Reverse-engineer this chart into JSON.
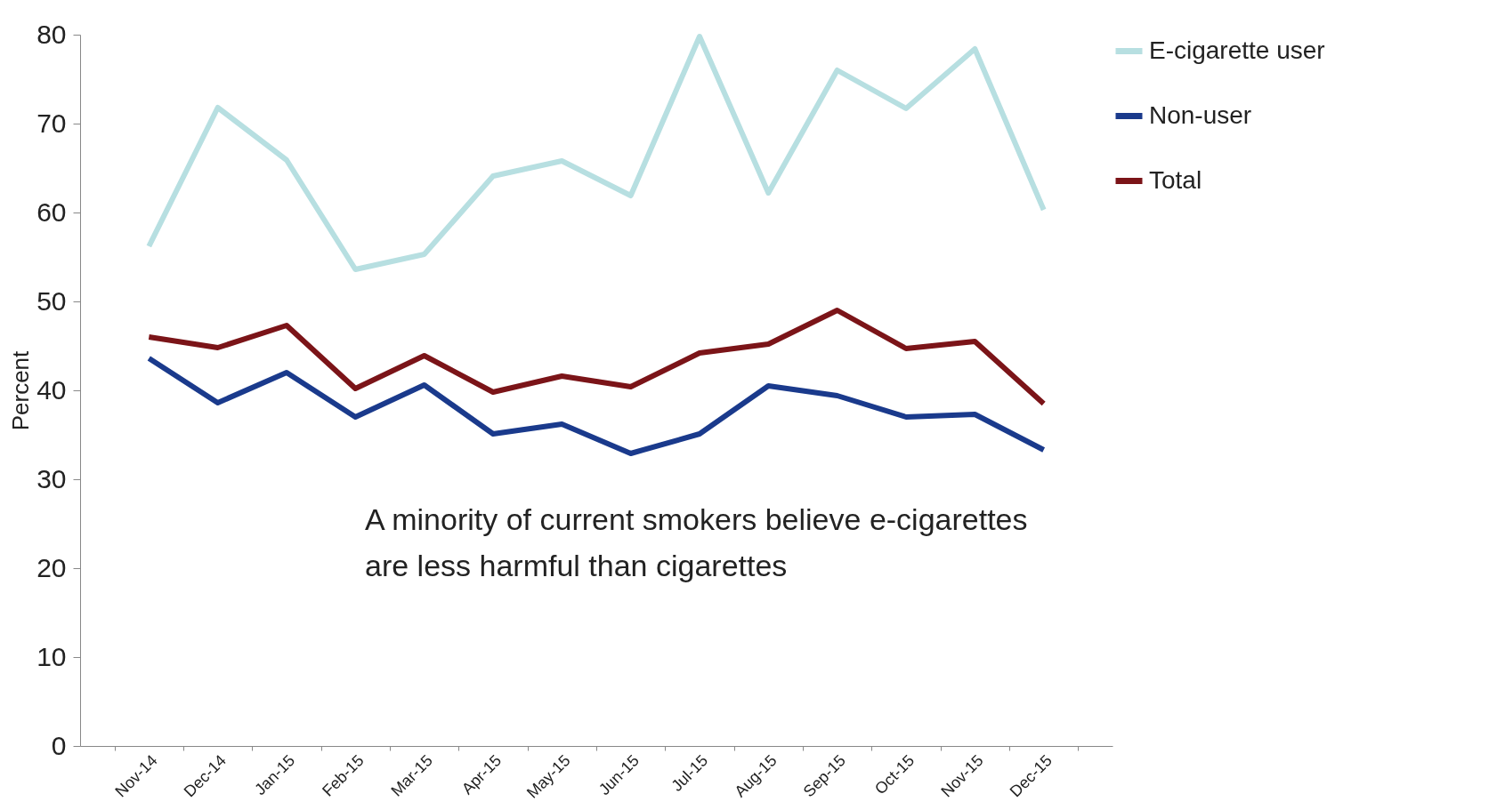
{
  "chart_data": {
    "type": "line",
    "categories": [
      "Nov-14",
      "Dec-14",
      "Jan-15",
      "Feb-15",
      "Mar-15",
      "Apr-15",
      "May-15",
      "Jun-15",
      "Jul-15",
      "Aug-15",
      "Sep-15",
      "Oct-15",
      "Nov-15",
      "Dec-15"
    ],
    "series": [
      {
        "name": "E-cigarette user",
        "color": "#b7dfe1",
        "values": [
          56.2,
          71.8,
          65.9,
          53.6,
          55.3,
          64.1,
          65.8,
          61.9,
          79.8,
          62.2,
          76.0,
          71.7,
          78.4,
          60.3
        ]
      },
      {
        "name": "Non-user",
        "color": "#1a3a8c",
        "values": [
          43.6,
          38.6,
          42.0,
          37.0,
          40.6,
          35.1,
          36.2,
          32.9,
          35.1,
          40.5,
          39.4,
          37.0,
          37.3,
          33.3
        ]
      },
      {
        "name": "Total",
        "color": "#7b1418",
        "values": [
          46.0,
          44.8,
          47.3,
          40.2,
          43.9,
          39.8,
          41.6,
          40.4,
          44.2,
          45.2,
          49.0,
          44.7,
          45.5,
          38.5
        ]
      }
    ],
    "ylabel": "Percent",
    "ylim": [
      0,
      80
    ],
    "yticks": [
      0,
      10,
      20,
      30,
      40,
      50,
      60,
      70,
      80
    ],
    "annotations": [
      "A minority of current smokers believe e-cigarettes are less harmful than cigarettes"
    ],
    "legend": "right",
    "grid": false,
    "marker": "none",
    "line_style": "solid"
  }
}
